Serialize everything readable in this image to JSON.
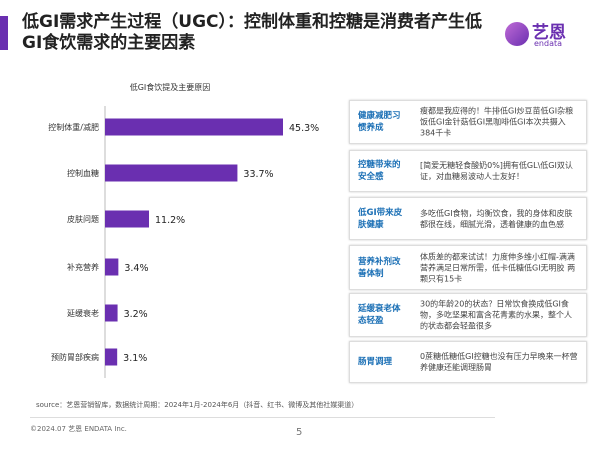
{
  "header": {
    "title": "低GI需求产生过程（UGC）：控制体重和控糖是消费者产生低GI食饮需求的主要因素",
    "logo_cn": "艺恩",
    "logo_en": "endata",
    "accent_color": "#6a2fb0"
  },
  "chart_data": {
    "type": "bar",
    "orientation": "horizontal",
    "title": "低GI食饮提及主要原因",
    "categories": [
      "控制体重/减肥",
      "控制血糖",
      "皮肤问题",
      "补充营养",
      "延缓衰老",
      "预防胃部疾病"
    ],
    "values": [
      45.3,
      33.7,
      11.2,
      3.4,
      3.2,
      3.1
    ],
    "value_labels": [
      "45.3%",
      "33.7%",
      "11.2%",
      "3.4%",
      "3.2%",
      "3.1%"
    ],
    "xlim": [
      0,
      50
    ],
    "bar_color": "#6a2fb0",
    "grid": false
  },
  "cards": [
    {
      "label": "健康减肥习惯养成",
      "text": "瘦都是我应得的！牛排低GI炒豆苗低GI杂粮饭低GI金针菇低GI黑咖啡低GI本次共摄入384千卡"
    },
    {
      "label": "控糖带来的安全感",
      "text": "[简爱无糖轻食酸奶0%]拥有低GL\\低GI双认证，对血糖易波动人士友好！"
    },
    {
      "label": "低GI带来皮肤健康",
      "text": "多吃低GI食物，均衡饮食，我的身体和皮肤都很在线，细腻光滑，透着健康的血色感"
    },
    {
      "label": "营养补剂改善体制",
      "text": "体质差的都来试试！力度伸多维小红帽-满满营养满足日常所需，低卡低糖低GI无明胶 两颗只有15卡"
    },
    {
      "label": "延缓衰老体态轻盈",
      "text": "30的年龄20的状态？日常饮食换成低GI食物，多吃坚果和富含花青素的水果，整个人的状态都会轻盈很多"
    },
    {
      "label": "肠胃调理",
      "text": "0蔗糖低糖低GI控糖也没有压力早晚来一杯营养健康还能调理肠胃"
    }
  ],
  "footer": {
    "source": "source：艺恩营销智库，数据统计周期：2024年1月-2024年6月（抖音、红书、微博及其他社媒渠道）",
    "copyright": "©2024.07 艺恩 ENDATA Inc.",
    "page": "5"
  }
}
